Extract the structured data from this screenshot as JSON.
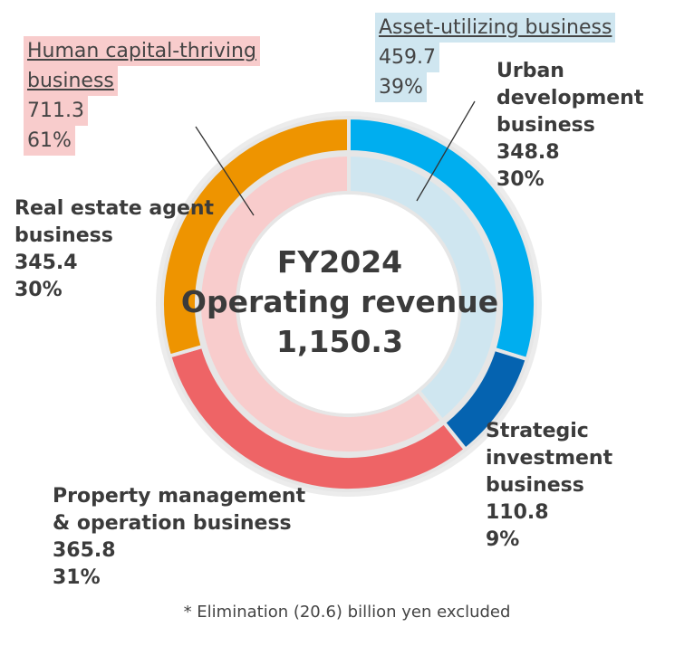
{
  "chart_data": {
    "type": "pie",
    "center": {
      "line1": "FY2024",
      "line2": "Operating revenue",
      "line3": "1,150.3"
    },
    "outer_ring": [
      {
        "name": "Urban development business",
        "value": 348.8,
        "pct": "30%",
        "value_label": "348.8",
        "color": "#00aeef"
      },
      {
        "name": "Strategic investment business",
        "value": 110.8,
        "pct": "9%",
        "value_label": "110.8",
        "color": "#0563b0"
      },
      {
        "name": "Property management & operation business",
        "value": 365.8,
        "pct": "31%",
        "value_label": "365.8",
        "color": "#ee6466"
      },
      {
        "name": "Real estate agent business",
        "value": 345.4,
        "pct": "30%",
        "value_label": "345.4",
        "color": "#ee9400"
      }
    ],
    "inner_ring": [
      {
        "name": "Asset-utilizing business",
        "value": 459.7,
        "pct": "39%",
        "value_label": "459.7",
        "color": "#cfe6f0"
      },
      {
        "name": "Human capital-thriving business",
        "value": 711.3,
        "pct": "61%",
        "value_label": "711.3",
        "color": "#f8cccc"
      }
    ],
    "label_lines": {
      "urban": [
        "Urban",
        "development",
        "business"
      ],
      "strategic": [
        "Strategic",
        "investment",
        "business"
      ],
      "property": [
        "Property management",
        "& operation business"
      ],
      "realestate": [
        "Real estate agent",
        "business"
      ],
      "human_name": [
        "Human capital-thriving",
        "business"
      ]
    },
    "footnote": "* Elimination (20.6) billion yen excluded"
  }
}
